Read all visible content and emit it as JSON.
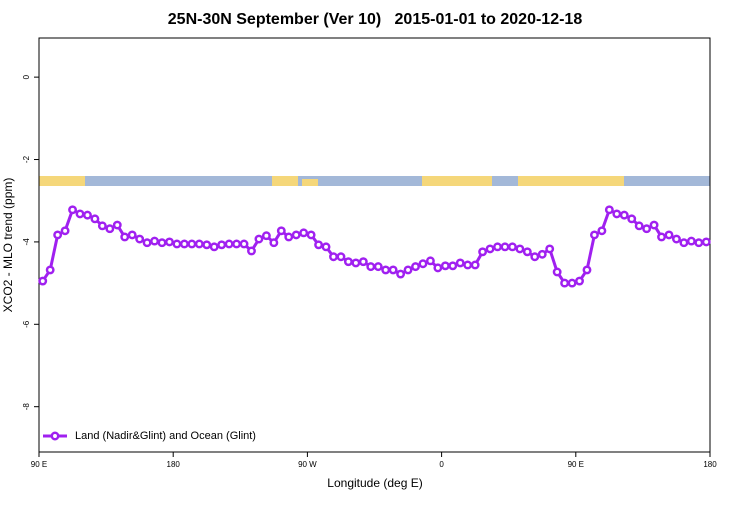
{
  "chart_data": {
    "type": "line",
    "title": "25N-30N September (Ver 10)   2015-01-01 to 2020-12-18",
    "xlabel": "Longitude (deg E)",
    "ylabel": "XCO2 - MLO trend (ppm)",
    "xlim": [
      90,
      540
    ],
    "ylim": [
      -9.1,
      0.95
    ],
    "xticks": [
      {
        "value": 90,
        "label": "90 E"
      },
      180,
      {
        "value": 270,
        "label": "90 W"
      },
      {
        "value": 360,
        "label": "0"
      },
      {
        "value": 450,
        "label": "90 E"
      },
      {
        "value": 540,
        "label": "180"
      }
    ],
    "yticks": [
      0,
      -2,
      -4,
      -6,
      -8
    ],
    "legend": "bottom-left",
    "x": [
      92.5,
      97.5,
      102.5,
      107.5,
      112.5,
      117.5,
      122.5,
      127.5,
      132.5,
      137.5,
      142.5,
      147.5,
      152.5,
      157.5,
      162.5,
      167.5,
      172.5,
      177.5,
      182.5,
      187.5,
      192.5,
      197.5,
      202.5,
      207.5,
      212.5,
      217.5,
      222.5,
      227.5,
      232.5,
      237.5,
      242.5,
      247.5,
      252.5,
      257.5,
      262.5,
      267.5,
      272.5,
      277.5,
      282.5,
      287.5,
      292.5,
      297.5,
      302.5,
      307.5,
      312.5,
      317.5,
      322.5,
      327.5,
      332.5,
      337.5,
      342.5,
      347.5,
      352.5,
      357.5,
      362.5,
      367.5,
      372.5,
      377.5,
      382.5,
      387.5,
      392.5,
      397.5,
      402.5,
      407.5,
      412.5,
      417.5,
      422.5,
      427.5,
      432.5,
      437.5,
      442.5,
      447.5,
      452.5,
      457.5,
      462.5,
      467.5,
      472.5,
      477.5,
      482.5,
      487.5,
      492.5,
      497.5,
      502.5,
      507.5,
      512.5,
      517.5,
      522.5,
      527.5,
      532.5,
      537.5
    ],
    "series": [
      {
        "name": "Land (Nadir&Glint) and Ocean (Glint)",
        "color": "#a020f0",
        "values": [
          -4.95,
          -4.68,
          -3.83,
          -3.73,
          -3.22,
          -3.32,
          -3.35,
          -3.44,
          -3.61,
          -3.68,
          -3.59,
          -3.88,
          -3.83,
          -3.93,
          -4.02,
          -3.98,
          -4.02,
          -4.0,
          -4.05,
          -4.05,
          -4.05,
          -4.05,
          -4.07,
          -4.12,
          -4.07,
          -4.05,
          -4.05,
          -4.05,
          -4.22,
          -3.93,
          -3.85,
          -4.02,
          -3.73,
          -3.88,
          -3.83,
          -3.78,
          -3.83,
          -4.07,
          -4.12,
          -4.36,
          -4.36,
          -4.48,
          -4.51,
          -4.48,
          -4.6,
          -4.6,
          -4.68,
          -4.68,
          -4.78,
          -4.68,
          -4.6,
          -4.53,
          -4.46,
          -4.63,
          -4.58,
          -4.58,
          -4.51,
          -4.56,
          -4.56,
          -4.24,
          -4.17,
          -4.12,
          -4.12,
          -4.12,
          -4.17,
          -4.24,
          -4.36,
          -4.3,
          -4.17,
          -4.73,
          -5.0,
          -5.0,
          -4.95,
          -4.68,
          -3.83,
          -3.73,
          -3.22,
          -3.32,
          -3.35,
          -3.44,
          -3.61,
          -3.68,
          -3.59,
          -3.88,
          -3.83,
          -3.93,
          -4.02,
          -3.98,
          -4.02,
          -4.0
        ]
      }
    ]
  }
}
